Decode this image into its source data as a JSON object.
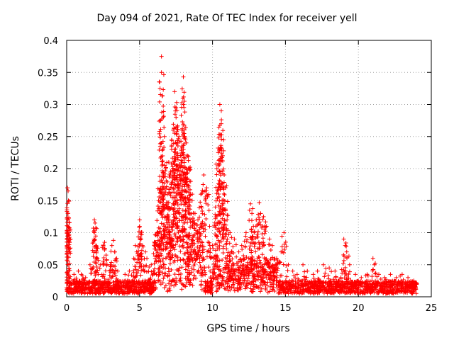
{
  "chart_data": {
    "type": "scatter",
    "title": "Day 094 of 2021, Rate Of TEC Index for receiver yell",
    "xlabel": "GPS time / hours",
    "ylabel": "ROTI / TECUs",
    "xlim": [
      0,
      25
    ],
    "ylim": [
      0,
      0.4
    ],
    "xticks": [
      0,
      5,
      10,
      15,
      20,
      25
    ],
    "yticks": [
      0,
      0.05,
      0.1,
      0.15,
      0.2,
      0.25,
      0.3,
      0.35,
      0.4
    ],
    "xtick_labels": [
      "0",
      "5",
      "10",
      "15",
      "20",
      "25"
    ],
    "ytick_labels": [
      "0",
      "0.05",
      "0.1",
      "0.15",
      "0.2",
      "0.25",
      "0.3",
      "0.35",
      "0.4"
    ],
    "grid": true,
    "marker": "+",
    "color": "#ff0000",
    "series": [
      {
        "name": "ROTI",
        "points": [
          [
            0.05,
            0.17
          ],
          [
            0.1,
            0.165
          ],
          [
            0.12,
            0.15
          ],
          [
            0.08,
            0.13
          ],
          [
            0.1,
            0.1
          ],
          [
            0.06,
            0.09
          ],
          [
            0.05,
            0.07
          ],
          [
            0.1,
            0.05
          ],
          [
            0.15,
            0.03
          ],
          [
            0.2,
            0.02
          ],
          [
            0.5,
            0.035
          ],
          [
            0.8,
            0.04
          ],
          [
            1.0,
            0.035
          ],
          [
            1.3,
            0.03
          ],
          [
            1.6,
            0.05
          ],
          [
            1.9,
            0.12
          ],
          [
            1.95,
            0.115
          ],
          [
            1.9,
            0.1
          ],
          [
            2.0,
            0.08
          ],
          [
            2.1,
            0.06
          ],
          [
            2.3,
            0.05
          ],
          [
            2.6,
            0.085
          ],
          [
            2.6,
            0.075
          ],
          [
            2.7,
            0.065
          ],
          [
            3.2,
            0.088
          ],
          [
            3.1,
            0.08
          ],
          [
            3.3,
            0.07
          ],
          [
            3.0,
            0.05
          ],
          [
            3.5,
            0.04
          ],
          [
            4.0,
            0.035
          ],
          [
            4.3,
            0.04
          ],
          [
            4.6,
            0.06
          ],
          [
            4.7,
            0.08
          ],
          [
            4.8,
            0.07
          ],
          [
            5.0,
            0.12
          ],
          [
            5.0,
            0.11
          ],
          [
            5.1,
            0.09
          ],
          [
            5.2,
            0.08
          ],
          [
            5.4,
            0.07
          ],
          [
            5.5,
            0.06
          ],
          [
            5.8,
            0.05
          ],
          [
            6.0,
            0.08
          ],
          [
            6.2,
            0.1
          ],
          [
            6.3,
            0.15
          ],
          [
            6.4,
            0.18
          ],
          [
            6.5,
            0.375
          ],
          [
            6.5,
            0.35
          ],
          [
            6.6,
            0.23
          ],
          [
            6.7,
            0.25
          ],
          [
            6.8,
            0.2
          ],
          [
            6.9,
            0.16
          ],
          [
            7.0,
            0.21
          ],
          [
            7.1,
            0.19
          ],
          [
            7.2,
            0.23
          ],
          [
            7.3,
            0.26
          ],
          [
            7.4,
            0.32
          ],
          [
            7.5,
            0.295
          ],
          [
            7.5,
            0.28
          ],
          [
            7.6,
            0.24
          ],
          [
            7.7,
            0.25
          ],
          [
            7.8,
            0.22
          ],
          [
            7.9,
            0.26
          ],
          [
            8.0,
            0.343
          ],
          [
            8.0,
            0.3
          ],
          [
            8.1,
            0.25
          ],
          [
            8.2,
            0.24
          ],
          [
            8.3,
            0.22
          ],
          [
            8.4,
            0.2
          ],
          [
            8.5,
            0.18
          ],
          [
            8.6,
            0.15
          ],
          [
            8.8,
            0.13
          ],
          [
            9.0,
            0.12
          ],
          [
            9.2,
            0.16
          ],
          [
            9.4,
            0.19
          ],
          [
            9.6,
            0.17
          ],
          [
            9.8,
            0.11
          ],
          [
            10.0,
            0.08
          ],
          [
            10.2,
            0.14
          ],
          [
            10.3,
            0.2
          ],
          [
            10.4,
            0.225
          ],
          [
            10.5,
            0.3
          ],
          [
            10.6,
            0.29
          ],
          [
            10.6,
            0.27
          ],
          [
            10.7,
            0.22
          ],
          [
            10.8,
            0.19
          ],
          [
            10.9,
            0.17
          ],
          [
            11.0,
            0.12
          ],
          [
            11.2,
            0.1
          ],
          [
            11.5,
            0.09
          ],
          [
            11.8,
            0.07
          ],
          [
            12.0,
            0.08
          ],
          [
            12.3,
            0.1
          ],
          [
            12.6,
            0.145
          ],
          [
            12.7,
            0.13
          ],
          [
            12.8,
            0.11
          ],
          [
            13.0,
            0.12
          ],
          [
            13.2,
            0.147
          ],
          [
            13.3,
            0.13
          ],
          [
            13.5,
            0.125
          ],
          [
            13.7,
            0.11
          ],
          [
            13.9,
            0.09
          ],
          [
            14.1,
            0.08
          ],
          [
            14.4,
            0.06
          ],
          [
            14.7,
            0.07
          ],
          [
            14.9,
            0.1
          ],
          [
            15.2,
            0.05
          ],
          [
            15.5,
            0.04
          ],
          [
            15.8,
            0.035
          ],
          [
            16.2,
            0.05
          ],
          [
            16.5,
            0.04
          ],
          [
            16.9,
            0.035
          ],
          [
            17.2,
            0.04
          ],
          [
            17.6,
            0.05
          ],
          [
            18.0,
            0.045
          ],
          [
            18.4,
            0.04
          ],
          [
            18.8,
            0.03
          ],
          [
            19.0,
            0.09
          ],
          [
            19.1,
            0.08
          ],
          [
            19.2,
            0.07
          ],
          [
            19.4,
            0.05
          ],
          [
            19.8,
            0.035
          ],
          [
            20.2,
            0.03
          ],
          [
            20.6,
            0.035
          ],
          [
            21.0,
            0.06
          ],
          [
            21.1,
            0.05
          ],
          [
            21.4,
            0.035
          ],
          [
            21.8,
            0.03
          ],
          [
            22.2,
            0.035
          ],
          [
            22.6,
            0.03
          ],
          [
            23.0,
            0.035
          ],
          [
            23.4,
            0.03
          ],
          [
            23.8,
            0.025
          ],
          [
            24.0,
            0.02
          ]
        ],
        "background_band": {
          "x_range": [
            0,
            24
          ],
          "ymin": 0.005,
          "ymax": 0.025,
          "count": 2200
        }
      }
    ]
  }
}
